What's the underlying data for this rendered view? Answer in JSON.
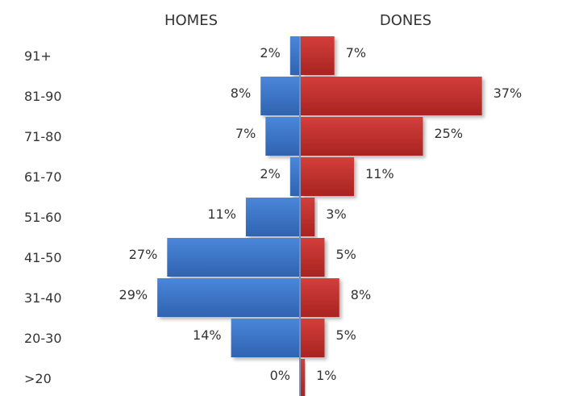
{
  "chart_data": {
    "type": "bar",
    "orientation": "horizontal-diverging",
    "categories": [
      "91+",
      "81-90",
      "71-80",
      "61-70",
      "51-60",
      "41-50",
      "31-40",
      "20-30",
      ">20"
    ],
    "series": [
      {
        "name": "HOMES",
        "values": [
          2,
          8,
          7,
          2,
          11,
          27,
          29,
          14,
          0
        ],
        "labels": [
          "2%",
          "8%",
          "7%",
          "2%",
          "11%",
          "27%",
          "29%",
          "14%",
          "0%"
        ]
      },
      {
        "name": "DONES",
        "values": [
          7,
          37,
          25,
          11,
          3,
          5,
          8,
          5,
          1
        ],
        "labels": [
          "7%",
          "37%",
          "25%",
          "11%",
          "3%",
          "5%",
          "8%",
          "5%",
          "1%"
        ]
      }
    ],
    "unit": "%",
    "grid": false,
    "legend": "none"
  },
  "colors": {
    "homes": "#3a73c6",
    "dones": "#c0302d",
    "text": "#333333"
  }
}
